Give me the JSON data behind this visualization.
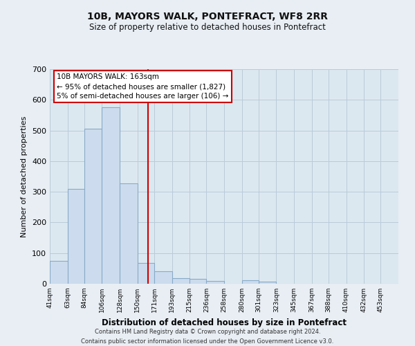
{
  "title": "10B, MAYORS WALK, PONTEFRACT, WF8 2RR",
  "subtitle": "Size of property relative to detached houses in Pontefract",
  "xlabel": "Distribution of detached houses by size in Pontefract",
  "ylabel": "Number of detached properties",
  "bar_edges": [
    41,
    63,
    84,
    106,
    128,
    150,
    171,
    193,
    215,
    236,
    258,
    280,
    301,
    323,
    345,
    367,
    388,
    410,
    432,
    453,
    475
  ],
  "bar_heights": [
    75,
    310,
    505,
    575,
    328,
    68,
    40,
    18,
    15,
    10,
    0,
    12,
    7,
    0,
    0,
    0,
    0,
    0,
    0,
    0
  ],
  "bar_color": "#ccdcee",
  "bar_edge_color": "#88aac8",
  "vline_x": 163,
  "vline_color": "#cc0000",
  "ylim": [
    0,
    700
  ],
  "yticks": [
    0,
    100,
    200,
    300,
    400,
    500,
    600,
    700
  ],
  "annotation_line1": "10B MAYORS WALK: 163sqm",
  "annotation_line2": "← 95% of detached houses are smaller (1,827)",
  "annotation_line3": "5% of semi-detached houses are larger (106) →",
  "footer_line1": "Contains HM Land Registry data © Crown copyright and database right 2024.",
  "footer_line2": "Contains public sector information licensed under the Open Government Licence v3.0.",
  "background_color": "#e8eef4",
  "plot_bg_color": "#dce8f0",
  "grid_color": "#b8ccd8"
}
